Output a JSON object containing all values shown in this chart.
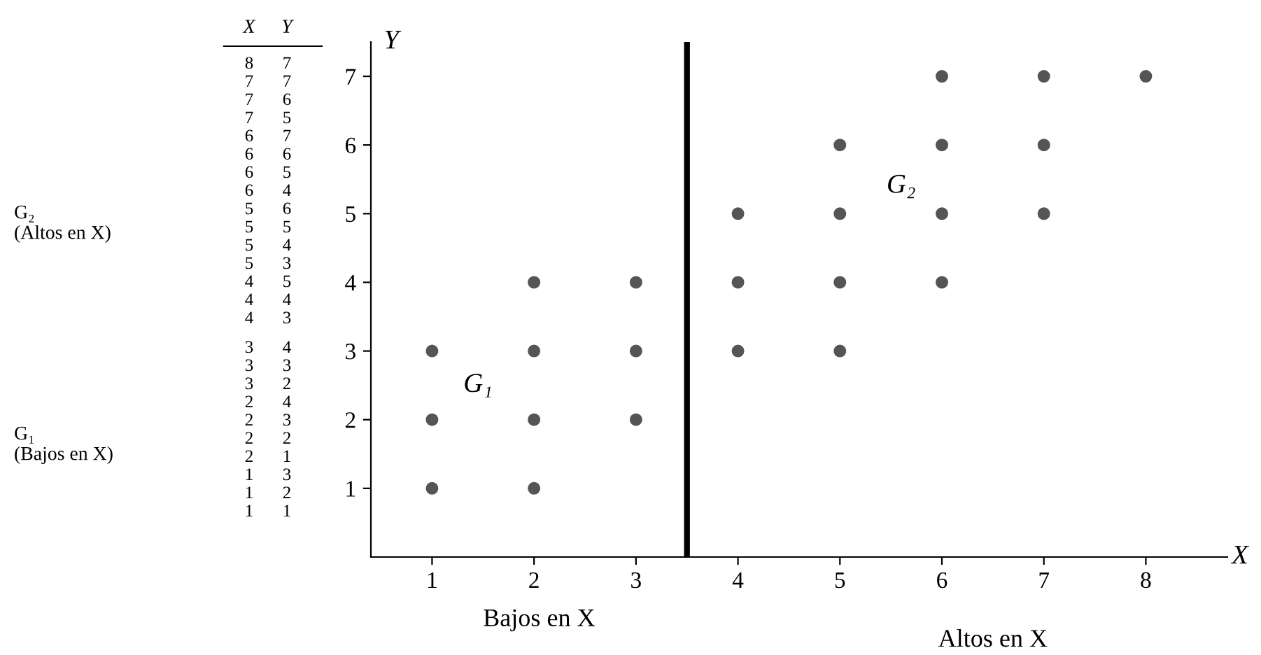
{
  "chart_data": {
    "type": "scatter",
    "xlabel": "X",
    "ylabel": "Y",
    "series": [
      {
        "color": "#555555",
        "x": [
          8,
          7,
          7,
          7,
          6,
          6,
          6,
          6,
          5,
          5,
          5,
          5,
          4,
          4,
          4
        ],
        "values": [
          7,
          7,
          6,
          5,
          7,
          6,
          5,
          4,
          6,
          5,
          4,
          3,
          5,
          4,
          3
        ]
      },
      {
        "color": "#555555",
        "x": [
          3,
          3,
          3,
          2,
          2,
          2,
          2,
          1,
          1,
          1
        ],
        "values": [
          4,
          3,
          2,
          4,
          3,
          2,
          1,
          3,
          2,
          1
        ]
      }
    ],
    "marker": "circle",
    "xlim": [
      0.4,
      8.8
    ],
    "ylim": [
      0,
      7.5
    ],
    "xticks": [
      1,
      2,
      3,
      4,
      5,
      6,
      7,
      8
    ],
    "yticks": [
      1,
      2,
      3,
      4,
      5,
      6,
      7
    ],
    "ref_lines": [
      {
        "axis": "x",
        "value": 3.5,
        "color": "#000000"
      }
    ],
    "annotations": [
      "G₁",
      "G₂",
      "Bajos en X",
      "Altos en X",
      "G₂\n(Altos en X)",
      "G₁\n(Bajos en X)",
      "X",
      "Y",
      "8",
      "7",
      "7",
      "7",
      "7",
      "6",
      "7",
      "5",
      "6",
      "7",
      "6",
      "6",
      "6",
      "5",
      "6",
      "4",
      "5",
      "6",
      "5",
      "5",
      "5",
      "4",
      "5",
      "3",
      "4",
      "5",
      "4",
      "4",
      "4",
      "3",
      "3",
      "4",
      "3",
      "3",
      "3",
      "2",
      "2",
      "4",
      "2",
      "3",
      "2",
      "2",
      "2",
      "1",
      "1",
      "3",
      "1",
      "2",
      "1",
      "1"
    ],
    "grid": false,
    "legend": false
  }
}
